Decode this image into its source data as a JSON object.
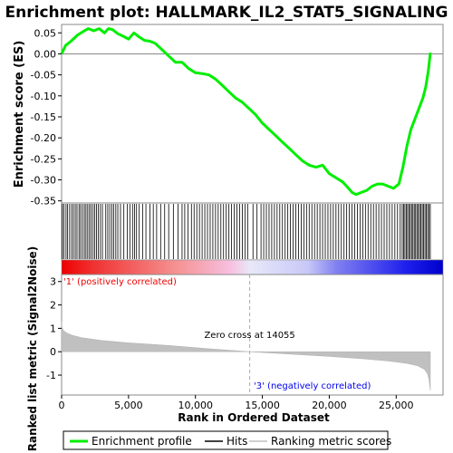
{
  "chart_data": {
    "type": "line",
    "title": "Enrichment plot: HALLMARK_IL2_STAT5_SIGNALING",
    "xlabel": "Rank in Ordered Dataset",
    "xlim": [
      0,
      28500
    ],
    "x_ticks": [
      0,
      5000,
      10000,
      15000,
      20000,
      25000
    ],
    "x_tick_labels": [
      "0",
      "5,000",
      "10,000",
      "15,000",
      "20,000",
      "25,000"
    ],
    "es_panel": {
      "ylabel": "Enrichment score (ES)",
      "ylim": [
        -0.355,
        0.07
      ],
      "y_ticks": [
        0.05,
        0.0,
        -0.05,
        -0.1,
        -0.15,
        -0.2,
        -0.25,
        -0.3,
        -0.35
      ],
      "y_tick_labels": [
        "0.05",
        "0.00",
        "-0.05",
        "-0.10",
        "-0.15",
        "-0.20",
        "-0.25",
        "-0.30",
        "-0.35"
      ],
      "series": [
        {
          "name": "Enrichment profile",
          "color": "#00ee00",
          "x": [
            0,
            300,
            700,
            1200,
            1700,
            2000,
            2400,
            2800,
            3200,
            3500,
            3800,
            4200,
            4600,
            5000,
            5400,
            5800,
            6200,
            6600,
            7000,
            7500,
            8000,
            8500,
            9000,
            9500,
            10000,
            10500,
            11000,
            11500,
            12000,
            12500,
            13000,
            13500,
            14000,
            14500,
            15000,
            15500,
            16000,
            16500,
            17000,
            17500,
            18000,
            18500,
            19000,
            19500,
            20000,
            20500,
            21000,
            21300,
            21700,
            22000,
            22400,
            22800,
            23200,
            23600,
            24000,
            24400,
            24800,
            25200,
            25500,
            25800,
            26100,
            26400,
            26700,
            27000,
            27200,
            27400,
            27550
          ],
          "y": [
            0.0,
            0.02,
            0.03,
            0.045,
            0.055,
            0.06,
            0.055,
            0.06,
            0.05,
            0.06,
            0.058,
            0.048,
            0.042,
            0.035,
            0.05,
            0.04,
            0.032,
            0.03,
            0.025,
            0.01,
            -0.005,
            -0.02,
            -0.02,
            -0.035,
            -0.045,
            -0.047,
            -0.05,
            -0.06,
            -0.075,
            -0.09,
            -0.105,
            -0.115,
            -0.13,
            -0.145,
            -0.165,
            -0.18,
            -0.195,
            -0.21,
            -0.225,
            -0.24,
            -0.255,
            -0.265,
            -0.27,
            -0.265,
            -0.285,
            -0.295,
            -0.305,
            -0.315,
            -0.33,
            -0.335,
            -0.33,
            -0.325,
            -0.315,
            -0.31,
            -0.31,
            -0.315,
            -0.32,
            -0.31,
            -0.27,
            -0.22,
            -0.18,
            -0.155,
            -0.13,
            -0.105,
            -0.08,
            -0.04,
            0.003
          ]
        }
      ],
      "zero_line": true
    },
    "hits_panel": {
      "legend_name": "Hits",
      "hit_positions": [
        60,
        180,
        330,
        450,
        600,
        750,
        880,
        1020,
        1150,
        1300,
        1420,
        1560,
        1700,
        1820,
        1950,
        2080,
        2200,
        2350,
        2480,
        2600,
        2750,
        2900,
        3050,
        3300,
        3450,
        3600,
        3750,
        3900,
        4050,
        4200,
        4400,
        4650,
        4900,
        5100,
        5300,
        5450,
        5600,
        5800,
        6050,
        6300,
        6600,
        6850,
        7100,
        7400,
        7700,
        8000,
        8350,
        8700,
        9000,
        9200,
        9450,
        9700,
        9900,
        10100,
        10300,
        10500,
        10700,
        10900,
        11100,
        11300,
        11500,
        11700,
        11900,
        12100,
        12300,
        12500,
        12700,
        12900,
        13100,
        13300,
        13500,
        13700,
        13900,
        14300,
        14600,
        14900,
        15100,
        15300,
        15500,
        15700,
        15900,
        16100,
        16300,
        16500,
        16700,
        16900,
        17100,
        17300,
        17500,
        17700,
        17900,
        18100,
        18300,
        18500,
        18700,
        18900,
        19100,
        19300,
        19500,
        19700,
        19900,
        20100,
        20300,
        20500,
        20700,
        20900,
        21100,
        21300,
        21500,
        21700,
        21900,
        22100,
        22300,
        22500,
        22700,
        22900,
        23100,
        23300,
        23500,
        23700,
        23900,
        24100,
        24300,
        24500,
        24700,
        24900,
        25100,
        25300,
        25450,
        25550,
        25650,
        25750,
        25850,
        25950,
        26050,
        26150,
        26250,
        26350,
        26450,
        26550,
        26650,
        26750,
        26850,
        26950,
        27050,
        27150,
        27250,
        27350,
        27450,
        27550
      ]
    },
    "metric_panel": {
      "ylabel": "Ranked list metric (Signal2Noise)",
      "legend_name": "Ranking metric scores",
      "ylim": [
        -1.85,
        3.3
      ],
      "y_ticks": [
        3,
        2,
        1,
        0,
        -1
      ],
      "y_tick_labels": [
        "3",
        "2",
        "1",
        "0",
        "-1"
      ],
      "profile_x": [
        0,
        30,
        150,
        400,
        800,
        1500,
        3000,
        5000,
        8000,
        11000,
        14055,
        17000,
        20000,
        22500,
        24500,
        25800,
        26600,
        27100,
        27350,
        27450,
        27550
      ],
      "profile_y": [
        1.3,
        1.05,
        0.9,
        0.8,
        0.7,
        0.6,
        0.48,
        0.38,
        0.27,
        0.13,
        0.0,
        -0.1,
        -0.2,
        -0.3,
        -0.4,
        -0.5,
        -0.6,
        -0.75,
        -0.95,
        -1.2,
        -1.65
      ],
      "zero_cross_label": "Zero cross at 14055",
      "zero_cross_x": 14055,
      "positive_label": "'1' (positively correlated)",
      "negative_label": "'3' (negatively correlated)",
      "positive_color": "#ee0000",
      "negative_color": "#0000ee"
    },
    "legend": [
      {
        "name": "Enrichment profile",
        "color": "#00ee00"
      },
      {
        "name": "Hits",
        "color": "#000000"
      },
      {
        "name": "Ranking metric scores",
        "color": "#c0c0c0"
      }
    ],
    "legend_placement": "bottom"
  }
}
